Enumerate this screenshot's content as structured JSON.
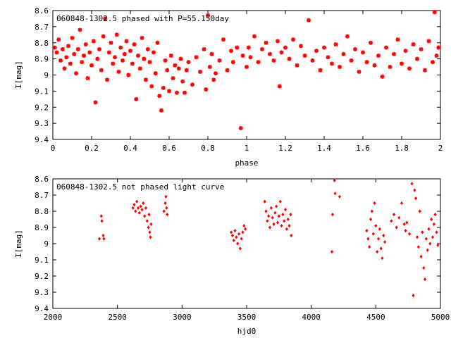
{
  "chart_data": [
    {
      "type": "scatter",
      "title": "060848-1302.5 phased with P=55.150day",
      "xlabel": "phase",
      "ylabel": "I[mag]",
      "xlim": [
        0,
        2
      ],
      "ylim": [
        9.4,
        8.6
      ],
      "y_inverted": true,
      "grid": false,
      "marker": "star",
      "color": "#ff0000",
      "xticks": [
        "0",
        "0.2",
        "0.4",
        "0.6",
        "0.8",
        "1",
        "1.2",
        "1.4",
        "1.6",
        "1.8",
        "2"
      ],
      "yticks": [
        "8.6",
        "8.7",
        "8.8",
        "8.9",
        "9",
        "9.1",
        "9.2",
        "9.3",
        "9.4"
      ],
      "series": [
        {
          "points": [
            [
              0.01,
              8.83
            ],
            [
              0.02,
              8.86
            ],
            [
              0.03,
              8.78
            ],
            [
              0.04,
              8.91
            ],
            [
              0.05,
              8.84
            ],
            [
              0.06,
              8.96
            ],
            [
              0.07,
              8.89
            ],
            [
              0.08,
              8.82
            ],
            [
              0.09,
              8.93
            ],
            [
              0.1,
              8.77
            ],
            [
              0.11,
              8.87
            ],
            [
              0.12,
              8.99
            ],
            [
              0.13,
              8.84
            ],
            [
              0.14,
              8.72
            ],
            [
              0.15,
              8.92
            ],
            [
              0.16,
              8.88
            ],
            [
              0.17,
              8.81
            ],
            [
              0.18,
              9.02
            ],
            [
              0.19,
              8.86
            ],
            [
              0.2,
              8.94
            ],
            [
              0.21,
              8.79
            ],
            [
              0.22,
              9.17
            ],
            [
              0.23,
              8.9
            ],
            [
              0.24,
              8.84
            ],
            [
              0.25,
              8.97
            ],
            [
              0.26,
              8.76
            ],
            [
              0.27,
              8.65
            ],
            [
              0.28,
              9.03
            ],
            [
              0.29,
              8.86
            ],
            [
              0.3,
              8.8
            ],
            [
              0.31,
              8.93
            ],
            [
              0.32,
              8.89
            ],
            [
              0.33,
              8.75
            ],
            [
              0.34,
              8.98
            ],
            [
              0.35,
              8.83
            ],
            [
              0.36,
              8.91
            ],
            [
              0.37,
              8.87
            ],
            [
              0.38,
              8.79
            ],
            [
              0.39,
              9.0
            ],
            [
              0.4,
              8.85
            ],
            [
              0.41,
              8.93
            ],
            [
              0.42,
              8.81
            ],
            [
              0.43,
              9.15
            ],
            [
              0.44,
              8.88
            ],
            [
              0.45,
              8.96
            ],
            [
              0.46,
              8.77
            ],
            [
              0.47,
              8.9
            ],
            [
              0.48,
              9.03
            ],
            [
              0.49,
              8.84
            ],
            [
              0.5,
              8.92
            ],
            [
              0.51,
              9.07
            ],
            [
              0.52,
              8.86
            ],
            [
              0.53,
              8.99
            ],
            [
              0.54,
              8.8
            ],
            [
              0.55,
              9.13
            ],
            [
              0.56,
              9.22
            ],
            [
              0.57,
              9.08
            ],
            [
              0.58,
              8.91
            ],
            [
              0.59,
              8.97
            ],
            [
              0.6,
              9.1
            ],
            [
              0.61,
              8.88
            ],
            [
              0.62,
              9.02
            ],
            [
              0.63,
              8.94
            ],
            [
              0.64,
              9.11
            ],
            [
              0.65,
              8.96
            ],
            [
              0.66,
              8.9
            ],
            [
              0.67,
              9.04
            ],
            [
              0.68,
              9.11
            ],
            [
              0.69,
              8.97
            ],
            [
              0.7,
              8.92
            ],
            [
              0.72,
              9.06
            ],
            [
              0.74,
              8.89
            ],
            [
              0.76,
              8.98
            ],
            [
              0.78,
              8.84
            ],
            [
              0.79,
              9.09
            ],
            [
              0.8,
              8.63
            ],
            [
              0.81,
              8.95
            ],
            [
              0.82,
              8.87
            ],
            [
              0.83,
              9.03
            ],
            [
              0.84,
              8.99
            ],
            [
              0.86,
              8.91
            ],
            [
              0.88,
              8.78
            ],
            [
              0.9,
              8.97
            ],
            [
              0.92,
              8.85
            ],
            [
              0.93,
              8.92
            ],
            [
              0.95,
              8.83
            ],
            [
              0.97,
              9.33
            ],
            [
              0.98,
              8.88
            ],
            [
              1.0,
              8.95
            ],
            [
              1.01,
              8.83
            ],
            [
              1.02,
              8.89
            ],
            [
              1.04,
              8.76
            ],
            [
              1.06,
              8.92
            ],
            [
              1.08,
              8.84
            ],
            [
              1.1,
              8.8
            ],
            [
              1.12,
              8.87
            ],
            [
              1.14,
              8.91
            ],
            [
              1.16,
              8.79
            ],
            [
              1.17,
              9.07
            ],
            [
              1.18,
              8.86
            ],
            [
              1.2,
              8.83
            ],
            [
              1.22,
              8.9
            ],
            [
              1.24,
              8.78
            ],
            [
              1.26,
              8.94
            ],
            [
              1.28,
              8.82
            ],
            [
              1.3,
              8.88
            ],
            [
              1.32,
              8.66
            ],
            [
              1.34,
              8.91
            ],
            [
              1.36,
              8.85
            ],
            [
              1.38,
              8.97
            ],
            [
              1.4,
              8.83
            ],
            [
              1.42,
              8.89
            ],
            [
              1.44,
              8.93
            ],
            [
              1.46,
              8.81
            ],
            [
              1.48,
              8.95
            ],
            [
              1.5,
              8.87
            ],
            [
              1.52,
              8.76
            ],
            [
              1.54,
              8.91
            ],
            [
              1.56,
              8.84
            ],
            [
              1.58,
              8.98
            ],
            [
              1.6,
              8.86
            ],
            [
              1.62,
              8.92
            ],
            [
              1.64,
              8.8
            ],
            [
              1.66,
              8.94
            ],
            [
              1.68,
              8.88
            ],
            [
              1.7,
              9.01
            ],
            [
              1.72,
              8.83
            ],
            [
              1.74,
              8.95
            ],
            [
              1.76,
              8.87
            ],
            [
              1.78,
              8.78
            ],
            [
              1.8,
              8.93
            ],
            [
              1.82,
              8.85
            ],
            [
              1.84,
              8.96
            ],
            [
              1.86,
              8.81
            ],
            [
              1.88,
              8.9
            ],
            [
              1.9,
              8.84
            ],
            [
              1.92,
              8.97
            ],
            [
              1.94,
              8.79
            ],
            [
              1.96,
              8.92
            ],
            [
              1.97,
              8.61
            ],
            [
              1.98,
              8.88
            ],
            [
              1.99,
              8.83
            ]
          ]
        }
      ]
    },
    {
      "type": "scatter",
      "title": "060848-1302.5 not phased light curve",
      "xlabel": "hjd0",
      "ylabel": "I[mag]",
      "xlim": [
        2000,
        5000
      ],
      "ylim": [
        9.4,
        8.6
      ],
      "y_inverted": true,
      "grid": false,
      "marker": "diamond",
      "color": "#ff0000",
      "xticks": [
        "2000",
        "2500",
        "3000",
        "3500",
        "4000",
        "4500",
        "5000"
      ],
      "yticks": [
        "8.6",
        "8.7",
        "8.8",
        "8.9",
        "9",
        "9.1",
        "9.2",
        "9.3",
        "9.4"
      ],
      "series": [
        {
          "points": [
            [
              2360,
              8.97
            ],
            [
              2375,
              8.83
            ],
            [
              2380,
              8.86
            ],
            [
              2390,
              8.95
            ],
            [
              2395,
              8.97
            ],
            [
              2620,
              8.78
            ],
            [
              2630,
              8.76
            ],
            [
              2640,
              8.8
            ],
            [
              2650,
              8.74
            ],
            [
              2660,
              8.78
            ],
            [
              2670,
              8.81
            ],
            [
              2680,
              8.77
            ],
            [
              2690,
              8.79
            ],
            [
              2700,
              8.75
            ],
            [
              2710,
              8.83
            ],
            [
              2720,
              8.78
            ],
            [
              2730,
              8.86
            ],
            [
              2740,
              8.9
            ],
            [
              2745,
              8.82
            ],
            [
              2750,
              8.93
            ],
            [
              2755,
              8.96
            ],
            [
              2760,
              8.88
            ],
            [
              2860,
              8.8
            ],
            [
              2870,
              8.75
            ],
            [
              2875,
              8.71
            ],
            [
              2880,
              8.78
            ],
            [
              2885,
              8.82
            ],
            [
              3380,
              8.93
            ],
            [
              3390,
              8.95
            ],
            [
              3400,
              8.98
            ],
            [
              3410,
              8.92
            ],
            [
              3420,
              8.96
            ],
            [
              3430,
              9.0
            ],
            [
              3440,
              8.94
            ],
            [
              3450,
              9.03
            ],
            [
              3460,
              8.97
            ],
            [
              3470,
              8.93
            ],
            [
              3480,
              8.89
            ],
            [
              3490,
              8.91
            ],
            [
              3640,
              8.74
            ],
            [
              3650,
              8.8
            ],
            [
              3660,
              8.86
            ],
            [
              3670,
              8.83
            ],
            [
              3680,
              8.9
            ],
            [
              3690,
              8.78
            ],
            [
              3700,
              8.84
            ],
            [
              3710,
              8.88
            ],
            [
              3720,
              8.81
            ],
            [
              3730,
              8.77
            ],
            [
              3740,
              8.87
            ],
            [
              3750,
              8.83
            ],
            [
              3760,
              8.74
            ],
            [
              3770,
              8.89
            ],
            [
              3780,
              8.82
            ],
            [
              3790,
              8.86
            ],
            [
              3800,
              8.79
            ],
            [
              3810,
              8.91
            ],
            [
              3820,
              8.85
            ],
            [
              3830,
              8.89
            ],
            [
              3840,
              8.82
            ],
            [
              3845,
              8.95
            ],
            [
              4160,
              9.05
            ],
            [
              4165,
              8.82
            ],
            [
              4180,
              8.61
            ],
            [
              4185,
              8.69
            ],
            [
              4220,
              8.71
            ],
            [
              4430,
              8.92
            ],
            [
              4440,
              8.97
            ],
            [
              4450,
              9.02
            ],
            [
              4460,
              8.85
            ],
            [
              4470,
              8.8
            ],
            [
              4480,
              8.94
            ],
            [
              4490,
              8.75
            ],
            [
              4500,
              8.89
            ],
            [
              4510,
              9.05
            ],
            [
              4520,
              8.97
            ],
            [
              4530,
              8.91
            ],
            [
              4540,
              9.03
            ],
            [
              4550,
              9.09
            ],
            [
              4560,
              8.95
            ],
            [
              4570,
              8.99
            ],
            [
              4620,
              8.86
            ],
            [
              4640,
              8.82
            ],
            [
              4660,
              8.9
            ],
            [
              4680,
              8.84
            ],
            [
              4700,
              8.75
            ],
            [
              4720,
              8.88
            ],
            [
              4730,
              8.92
            ],
            [
              4740,
              8.87
            ],
            [
              4760,
              8.94
            ],
            [
              4780,
              8.63
            ],
            [
              4790,
              9.32
            ],
            [
              4800,
              8.67
            ],
            [
              4810,
              8.72
            ],
            [
              4820,
              8.96
            ],
            [
              4830,
              9.02
            ],
            [
              4840,
              8.8
            ],
            [
              4850,
              9.08
            ],
            [
              4860,
              8.93
            ],
            [
              4870,
              9.15
            ],
            [
              4880,
              9.22
            ],
            [
              4890,
              8.97
            ],
            [
              4900,
              9.04
            ],
            [
              4910,
              8.91
            ],
            [
              4920,
              9.0
            ],
            [
              4930,
              8.85
            ],
            [
              4940,
              8.96
            ],
            [
              4950,
              8.88
            ],
            [
              4960,
              8.82
            ],
            [
              4970,
              8.93
            ],
            [
              4980,
              9.01
            ]
          ]
        }
      ]
    }
  ]
}
